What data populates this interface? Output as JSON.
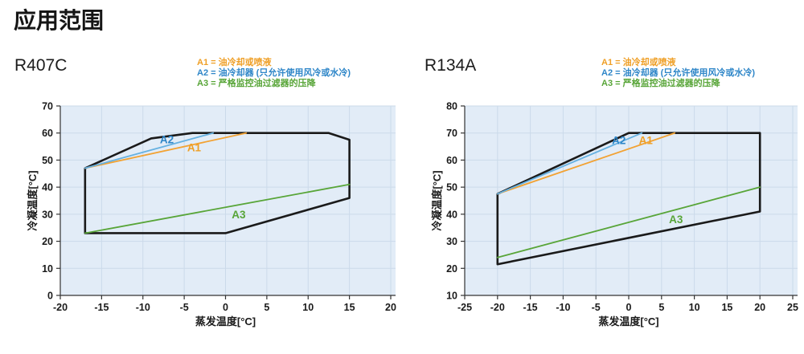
{
  "page": {
    "title": "应用范围"
  },
  "style": {
    "plot_bg": "#E2ECF7",
    "grid": "#CBDAEA",
    "axis": "#333333",
    "envelope": "#1A1A1A"
  },
  "legend": {
    "items": [
      {
        "id": "A1",
        "label": "A1 = 油冷却或喷液",
        "color": "#EF9F26"
      },
      {
        "id": "A2",
        "label": "A2 = 油冷却器 (只允许使用风冷或水冷)",
        "color": "#2E86C8"
      },
      {
        "id": "A3",
        "label": "A3 = 严格监控油过滤器的压降",
        "color": "#58A538"
      }
    ]
  },
  "chart_data": [
    {
      "type": "line",
      "title": "R407C",
      "xlabel": "蒸发温度[°C]",
      "ylabel": "冷凝温度[°C]",
      "xlim": [
        -20,
        20
      ],
      "ylim": [
        0,
        70
      ],
      "xticks": [
        -20,
        -15,
        -10,
        -5,
        0,
        5,
        10,
        15,
        20
      ],
      "yticks": [
        0,
        10,
        20,
        30,
        40,
        50,
        60,
        70
      ],
      "grid": true,
      "legend_position": "top-right",
      "envelope": {
        "name": "operating-envelope",
        "color": "#1A1A1A",
        "closed": true,
        "points": [
          [
            -17,
            23
          ],
          [
            -17,
            47
          ],
          [
            -9,
            58
          ],
          [
            -4,
            60
          ],
          [
            12.5,
            60
          ],
          [
            15,
            57.5
          ],
          [
            15,
            36
          ],
          [
            0,
            23
          ]
        ]
      },
      "series": [
        {
          "name": "A1",
          "color": "#F2A233",
          "label_color": "#EF9F26",
          "points": [
            [
              -17,
              47
            ],
            [
              2.5,
              60
            ]
          ],
          "label_at": [
            -3.8,
            54.6
          ]
        },
        {
          "name": "A2",
          "color": "#66B1E1",
          "label_color": "#2E86C8",
          "points": [
            [
              -17,
              47
            ],
            [
              -1.5,
              60
            ]
          ],
          "label_at": [
            -7.1,
            57.6
          ]
        },
        {
          "name": "A3",
          "color": "#58A538",
          "label_color": "#58A538",
          "points": [
            [
              -17,
              23
            ],
            [
              15,
              41
            ]
          ],
          "label_at": [
            1.6,
            29.8
          ]
        }
      ]
    },
    {
      "type": "line",
      "title": "R134A",
      "xlabel": "蒸发温度[°C]",
      "ylabel": "冷凝温度[°C]",
      "xlim": [
        -25,
        25
      ],
      "ylim": [
        10,
        80
      ],
      "xticks": [
        -25,
        -20,
        -15,
        -10,
        -5,
        0,
        5,
        10,
        15,
        20,
        25
      ],
      "yticks": [
        10,
        20,
        30,
        40,
        50,
        60,
        70,
        80
      ],
      "grid": true,
      "legend_position": "top-right",
      "envelope": {
        "name": "operating-envelope",
        "color": "#1A1A1A",
        "closed": true,
        "points": [
          [
            -20,
            21.5
          ],
          [
            -20,
            47.5
          ],
          [
            0,
            70
          ],
          [
            20,
            70
          ],
          [
            20,
            41
          ]
        ]
      },
      "series": [
        {
          "name": "A1",
          "color": "#F2A233",
          "label_color": "#EF9F26",
          "points": [
            [
              -20,
              47.5
            ],
            [
              7,
              70
            ]
          ],
          "label_at": [
            2.6,
            67.3
          ]
        },
        {
          "name": "A2",
          "color": "#66B1E1",
          "label_color": "#2E86C8",
          "points": [
            [
              -20,
              47.5
            ],
            [
              2,
              70
            ]
          ],
          "label_at": [
            -1.5,
            67.3
          ]
        },
        {
          "name": "A3",
          "color": "#58A538",
          "label_color": "#58A538",
          "points": [
            [
              -20,
              24
            ],
            [
              20,
              50
            ]
          ],
          "label_at": [
            7.2,
            38
          ]
        }
      ]
    }
  ]
}
